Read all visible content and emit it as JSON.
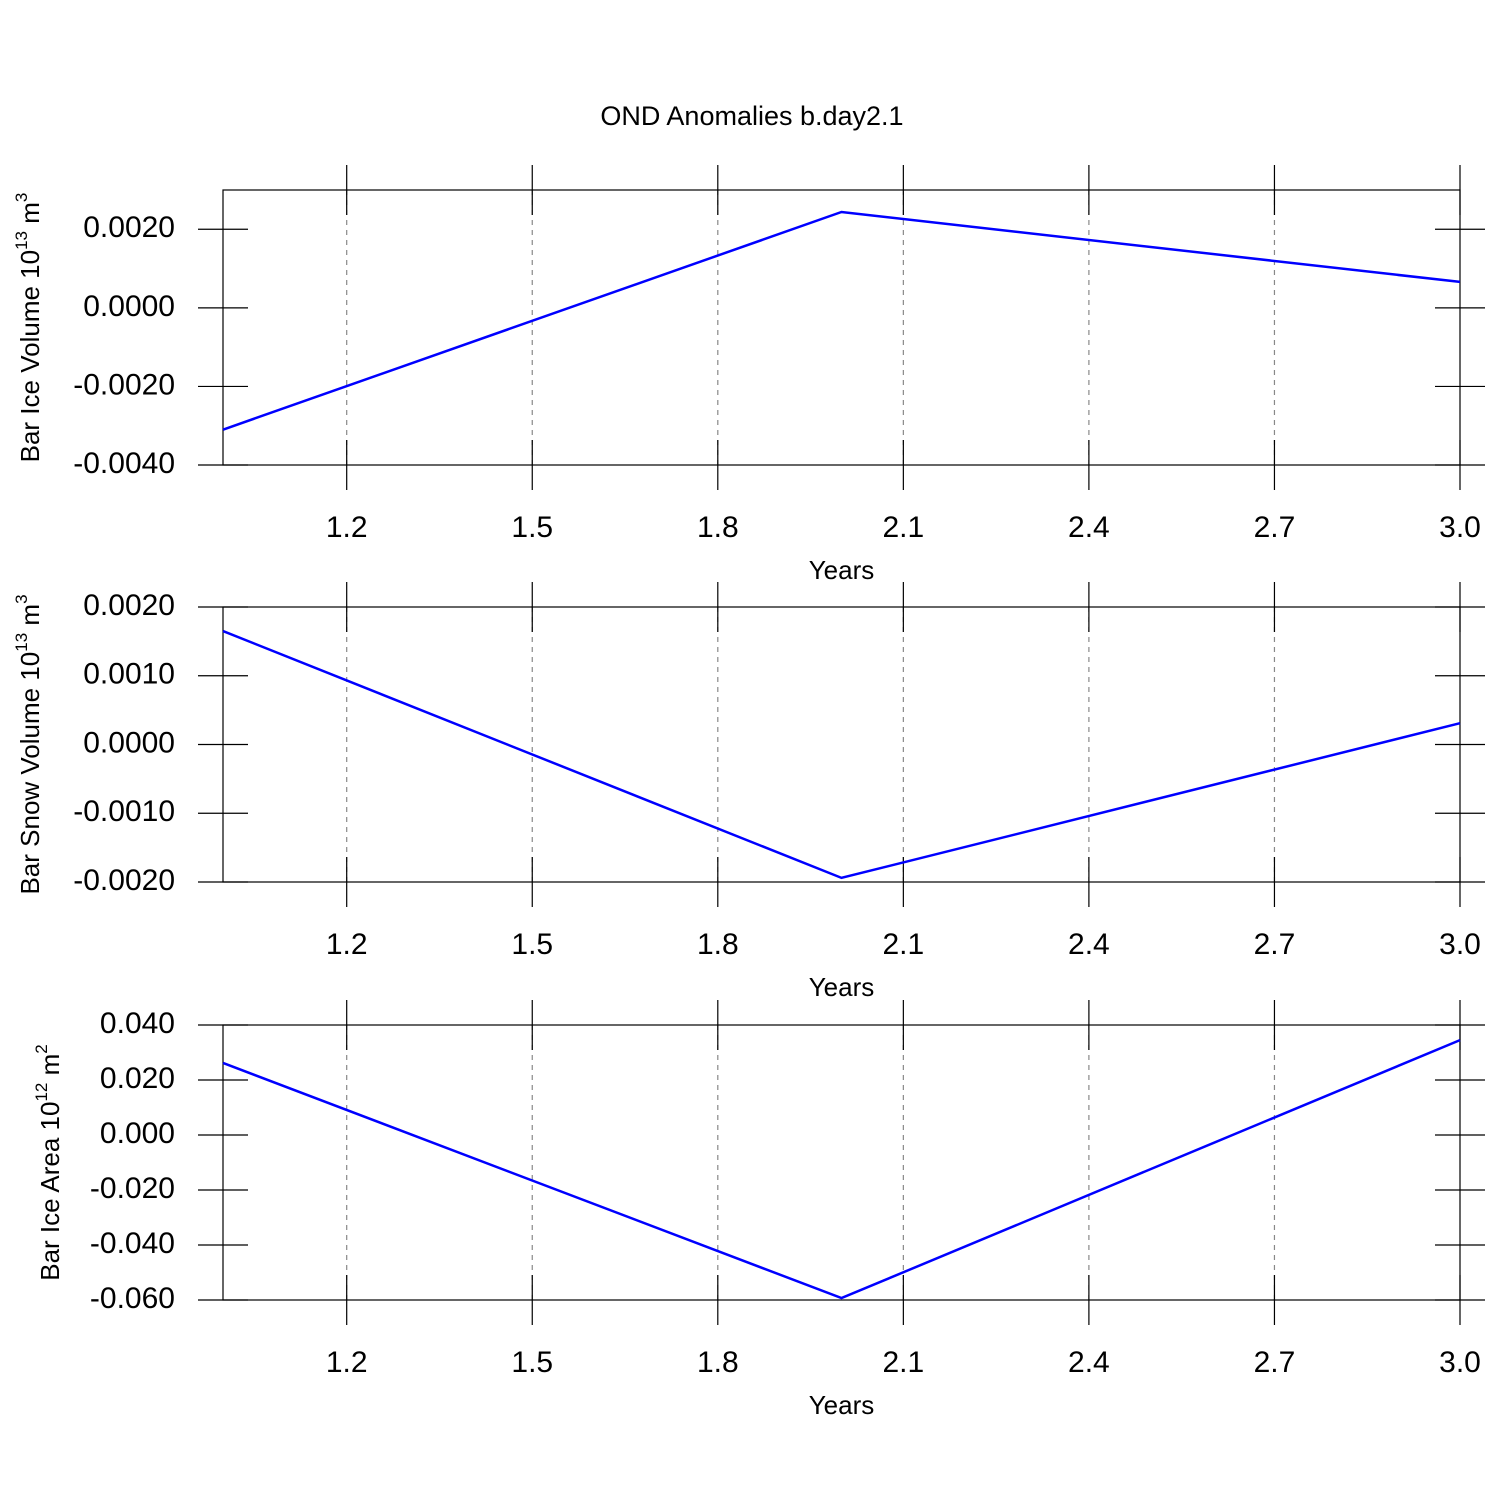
{
  "chart_data": [
    {
      "type": "line",
      "title": "OND Anomalies b.day2.1",
      "ylabel": [
        "Bar Ice Volume 10",
        "13",
        " m",
        "3"
      ],
      "xlabel": "Years",
      "x": [
        1,
        2,
        3
      ],
      "series": [
        {
          "color": "#0000ff",
          "values": [
            -0.0031,
            0.00244,
            0.00066
          ]
        }
      ],
      "xlim": [
        1,
        3
      ],
      "xticks": [
        1.2,
        1.5,
        1.8,
        2.1,
        2.4,
        2.7,
        {
          "value": 3,
          "label": "3.0"
        }
      ],
      "ylim": [
        -0.004,
        0.003
      ],
      "yticks": [
        {
          "value": -0.004,
          "label": "-0.0040"
        },
        {
          "value": -0.002,
          "label": "-0.0020"
        },
        {
          "value": 0,
          "label": "0.0000"
        },
        {
          "value": 0.002,
          "label": "0.0020"
        }
      ],
      "grid": true
    },
    {
      "type": "line",
      "ylabel": [
        "Bar Snow Volume 10",
        "13",
        " m",
        "3"
      ],
      "xlabel": "Years",
      "x": [
        1,
        2,
        3
      ],
      "series": [
        {
          "color": "#0000ff",
          "values": [
            0.00165,
            -0.00194,
            0.00031
          ]
        }
      ],
      "xlim": [
        1,
        3
      ],
      "xticks": [
        1.2,
        1.5,
        1.8,
        2.1,
        2.4,
        2.7,
        {
          "value": 3,
          "label": "3.0"
        }
      ],
      "ylim": [
        -0.002,
        0.002
      ],
      "yticks": [
        {
          "value": -0.002,
          "label": "-0.0020"
        },
        {
          "value": -0.001,
          "label": "-0.0010"
        },
        {
          "value": 0,
          "label": "0.0000"
        },
        {
          "value": 0.001,
          "label": "0.0010"
        },
        {
          "value": 0.002,
          "label": "0.0020"
        }
      ],
      "grid": true
    },
    {
      "type": "line",
      "ylabel": [
        "Bar Ice Area 10",
        "12",
        " m",
        "2"
      ],
      "xlabel": "Years",
      "x": [
        1,
        2,
        3
      ],
      "series": [
        {
          "color": "#0000ff",
          "values": [
            0.0262,
            -0.0593,
            0.0345
          ]
        }
      ],
      "xlim": [
        1,
        3
      ],
      "xticks": [
        1.2,
        1.5,
        1.8,
        2.1,
        2.4,
        2.7,
        {
          "value": 3,
          "label": "3.0"
        }
      ],
      "ylim": [
        -0.06,
        0.04
      ],
      "yticks": [
        {
          "value": -0.06,
          "label": "-0.060"
        },
        {
          "value": -0.04,
          "label": "-0.040"
        },
        {
          "value": -0.02,
          "label": "-0.020"
        },
        {
          "value": 0,
          "label": "0.000"
        },
        {
          "value": 0.02,
          "label": "0.020"
        },
        {
          "value": 0.04,
          "label": "0.040"
        }
      ],
      "grid": true
    }
  ]
}
